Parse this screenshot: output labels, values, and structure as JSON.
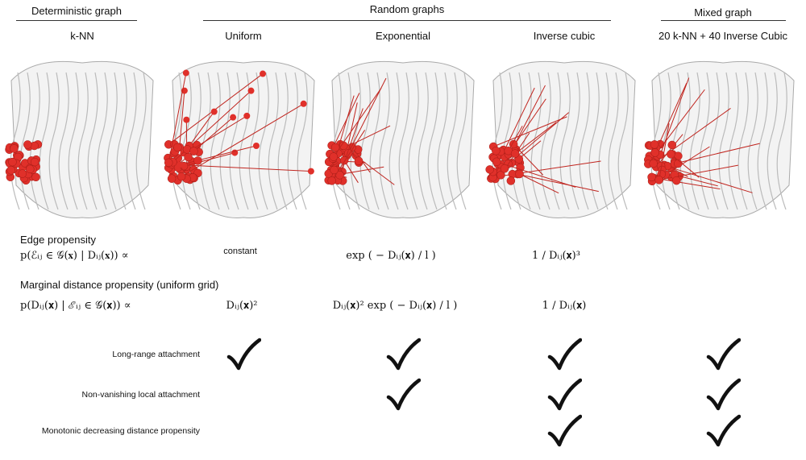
{
  "groups": [
    {
      "title": "Deterministic graph"
    },
    {
      "title": "Random graphs"
    },
    {
      "title": "Mixed graph"
    }
  ],
  "columns": [
    {
      "label": "k-NN"
    },
    {
      "label": "Uniform"
    },
    {
      "label": "Exponential"
    },
    {
      "label": "Inverse cubic"
    },
    {
      "label": "20 k-NN + 40 Inverse Cubic"
    }
  ],
  "edge_propensity": {
    "title": "Edge propensity",
    "formula": "p(ℰᵢⱼ ∈ 𝒢(𝐱) | Dᵢⱼ(𝐱)) ∝",
    "uniform": "constant",
    "exponential": "exp ( − Dᵢⱼ(𝐱) / l )",
    "inverse_cubic": "1 / Dᵢⱼ(𝐱)³"
  },
  "marginal_propensity": {
    "title": "Marginal distance propensity (uniform grid)",
    "formula": "p(Dᵢⱼ(𝐱) | ℰᵢⱼ ∈ 𝒢(𝐱)) ∝",
    "uniform": "Dᵢⱼ(𝐱)²",
    "exponential": "Dᵢⱼ(𝐱)² exp ( − Dᵢⱼ(𝐱) / l )",
    "inverse_cubic": "1 / Dᵢⱼ(𝐱)"
  },
  "properties": [
    {
      "label": "Long-range attachment",
      "checks": [
        false,
        true,
        true,
        true,
        true
      ]
    },
    {
      "label": "Non-vanishing local attachment",
      "checks": [
        false,
        false,
        true,
        true,
        true
      ]
    },
    {
      "label": "Monotonic decreasing distance propensity",
      "checks": [
        false,
        false,
        false,
        true,
        true
      ]
    }
  ]
}
